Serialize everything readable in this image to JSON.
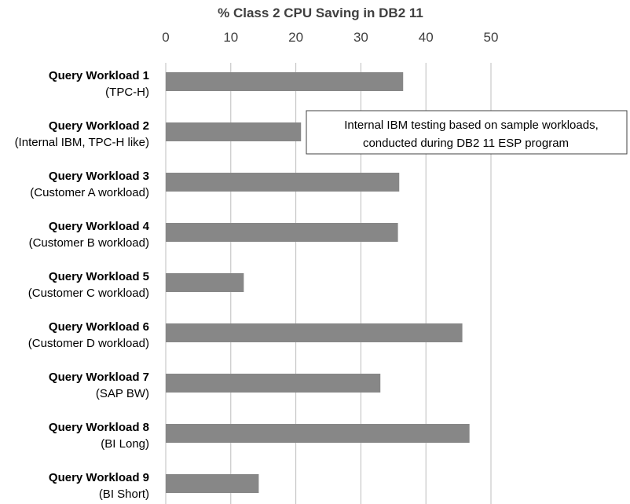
{
  "chart_data": {
    "type": "bar",
    "orientation": "horizontal",
    "title": "% Class 2 CPU Saving in DB2 11",
    "xlim": [
      0,
      50
    ],
    "xticks": [
      "0",
      "10",
      "20",
      "30",
      "40",
      "50"
    ],
    "grid": true,
    "categories": [
      {
        "name": "Query Workload 1",
        "detail": "(TPC-H)"
      },
      {
        "name": "Query Workload 2",
        "detail": "(Internal IBM, TPC-H like)"
      },
      {
        "name": "Query Workload 3",
        "detail": "(Customer A workload)"
      },
      {
        "name": "Query Workload 4",
        "detail": "(Customer B workload)"
      },
      {
        "name": "Query Workload 5",
        "detail": "(Customer C workload)"
      },
      {
        "name": "Query Workload 6",
        "detail": "(Customer D workload)"
      },
      {
        "name": "Query Workload 7",
        "detail": "(SAP BW)"
      },
      {
        "name": "Query Workload 8",
        "detail": "(BI Long)"
      },
      {
        "name": "Query Workload 9",
        "detail": "(BI Short)"
      }
    ],
    "values": [
      36.5,
      20.8,
      35.9,
      35.7,
      12.0,
      45.6,
      33.0,
      46.7,
      14.3
    ],
    "bar_color": "#878787",
    "grid_color": "#bdbdbd",
    "annotation": {
      "lines": [
        "Internal IBM testing based on sample workloads,",
        "conducted during DB2 11 ESP program"
      ]
    }
  }
}
